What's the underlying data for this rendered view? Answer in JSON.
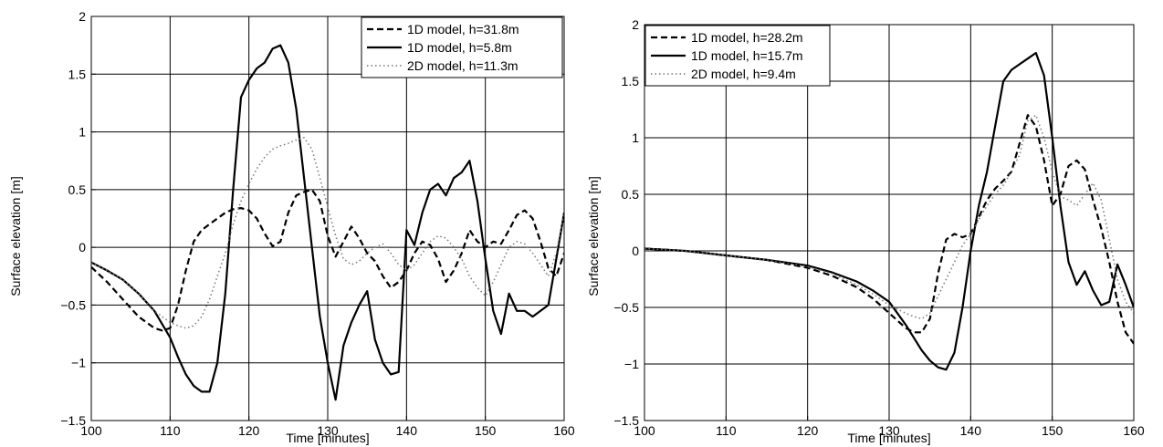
{
  "chart_data": [
    {
      "type": "line",
      "xlabel": "Time [minutes]",
      "ylabel": "Surface elevation [m]",
      "xlim": [
        100,
        160
      ],
      "ylim": [
        -1.5,
        2
      ],
      "xticks": [
        100,
        110,
        120,
        130,
        140,
        150,
        160
      ],
      "yticks": [
        -1.5,
        -1,
        -0.5,
        0,
        0.5,
        1,
        1.5,
        2
      ],
      "ytick_labels": [
        "−1.5",
        "−1",
        "−0.5",
        "0",
        "0.5",
        "1",
        "1.5",
        "2"
      ],
      "grid": true,
      "legend_position": "top-right",
      "series": [
        {
          "name": "1D model, h=31.8m",
          "style": "dashed",
          "x": [
            100,
            102,
            104,
            106,
            108,
            109,
            110,
            111,
            112,
            113,
            114,
            115,
            116,
            117,
            118,
            119,
            120,
            121,
            122,
            123,
            124,
            125,
            126,
            127,
            128,
            129,
            130,
            131,
            132,
            133,
            134,
            135,
            136,
            137,
            138,
            139,
            140,
            141,
            142,
            143,
            144,
            145,
            146,
            147,
            148,
            149,
            150,
            151,
            152,
            153,
            154,
            155,
            156,
            157,
            158,
            159,
            160
          ],
          "y": [
            -0.17,
            -0.3,
            -0.45,
            -0.6,
            -0.7,
            -0.72,
            -0.7,
            -0.5,
            -0.2,
            0.05,
            0.15,
            0.2,
            0.25,
            0.3,
            0.33,
            0.34,
            0.32,
            0.25,
            0.12,
            0.01,
            0.05,
            0.3,
            0.45,
            0.48,
            0.5,
            0.4,
            0.1,
            -0.08,
            0.05,
            0.18,
            0.08,
            -0.05,
            -0.12,
            -0.25,
            -0.35,
            -0.3,
            -0.2,
            -0.05,
            0.05,
            0.02,
            -0.1,
            -0.3,
            -0.2,
            -0.05,
            0.15,
            0.05,
            0.0,
            0.05,
            0.03,
            0.15,
            0.28,
            0.32,
            0.25,
            0.05,
            -0.18,
            -0.25,
            -0.05
          ]
        },
        {
          "name": "1D model, h=5.8m",
          "style": "solid",
          "x": [
            100,
            102,
            104,
            106,
            108,
            110,
            111,
            112,
            113,
            114,
            115,
            116,
            117,
            118,
            119,
            120,
            121,
            122,
            123,
            124,
            125,
            126,
            127,
            128,
            129,
            130,
            131,
            132,
            133,
            134,
            135,
            136,
            137,
            138,
            139,
            140,
            141,
            142,
            143,
            144,
            145,
            146,
            147,
            148,
            149,
            150,
            151,
            152,
            153,
            154,
            155,
            156,
            157,
            158,
            159,
            160
          ],
          "y": [
            -0.13,
            -0.2,
            -0.28,
            -0.4,
            -0.55,
            -0.78,
            -0.95,
            -1.1,
            -1.2,
            -1.25,
            -1.25,
            -1.0,
            -0.4,
            0.5,
            1.3,
            1.45,
            1.55,
            1.6,
            1.72,
            1.75,
            1.6,
            1.2,
            0.6,
            0.0,
            -0.6,
            -1.0,
            -1.32,
            -0.85,
            -0.65,
            -0.5,
            -0.38,
            -0.8,
            -1.0,
            -1.1,
            -1.08,
            0.15,
            0.02,
            0.3,
            0.5,
            0.55,
            0.45,
            0.6,
            0.65,
            0.75,
            0.4,
            -0.1,
            -0.55,
            -0.75,
            -0.4,
            -0.55,
            -0.55,
            -0.6,
            -0.55,
            -0.5,
            -0.1,
            0.3
          ]
        },
        {
          "name": "2D model, h=11.3m",
          "style": "dotted",
          "x": [
            100,
            102,
            104,
            106,
            108,
            110,
            111,
            112,
            113,
            114,
            115,
            116,
            117,
            118,
            119,
            120,
            121,
            122,
            123,
            124,
            125,
            126,
            127,
            128,
            129,
            130,
            131,
            132,
            133,
            134,
            135,
            136,
            137,
            138,
            139,
            140,
            141,
            142,
            143,
            144,
            145,
            146,
            147,
            148,
            149,
            150,
            151,
            152,
            153,
            154,
            155,
            156,
            157,
            158,
            159,
            160
          ],
          "y": [
            -0.13,
            -0.2,
            -0.28,
            -0.4,
            -0.55,
            -0.65,
            -0.68,
            -0.7,
            -0.68,
            -0.6,
            -0.45,
            -0.25,
            -0.05,
            0.2,
            0.4,
            0.55,
            0.68,
            0.78,
            0.85,
            0.88,
            0.9,
            0.93,
            0.95,
            0.85,
            0.6,
            0.35,
            0.1,
            -0.1,
            -0.15,
            -0.12,
            -0.05,
            0.0,
            0.03,
            -0.05,
            -0.15,
            -0.2,
            -0.15,
            -0.05,
            0.05,
            0.1,
            0.08,
            0.0,
            -0.1,
            -0.25,
            -0.35,
            -0.42,
            -0.3,
            -0.15,
            0.0,
            0.05,
            0.03,
            -0.05,
            -0.15,
            -0.25,
            -0.05,
            0.3
          ]
        }
      ]
    },
    {
      "type": "line",
      "xlabel": "Time [minutes]",
      "ylabel": "Surface elevation [m]",
      "xlim": [
        100,
        160
      ],
      "ylim": [
        -1.5,
        2
      ],
      "xticks": [
        100,
        110,
        120,
        130,
        140,
        150,
        160
      ],
      "yticks": [
        -1.5,
        -1,
        -0.5,
        0,
        0.5,
        1,
        1.5,
        2
      ],
      "ytick_labels": [
        "−1.5",
        "−1",
        "−0.5",
        "0",
        "0.5",
        "1",
        "1.5",
        "2"
      ],
      "grid": true,
      "legend_position": "top-left",
      "series": [
        {
          "name": "1D model, h=28.2m",
          "style": "dashed",
          "x": [
            100,
            105,
            110,
            115,
            120,
            123,
            126,
            128,
            130,
            132,
            133,
            134,
            135,
            136,
            137,
            138,
            139,
            140,
            141,
            142,
            143,
            144,
            145,
            146,
            147,
            148,
            149,
            150,
            151,
            152,
            153,
            154,
            155,
            156,
            157,
            158,
            159,
            160
          ],
          "y": [
            0.02,
            0.0,
            -0.04,
            -0.08,
            -0.15,
            -0.22,
            -0.32,
            -0.42,
            -0.55,
            -0.68,
            -0.72,
            -0.72,
            -0.6,
            -0.2,
            0.1,
            0.15,
            0.12,
            0.15,
            0.3,
            0.45,
            0.55,
            0.62,
            0.7,
            0.95,
            1.2,
            1.1,
            0.8,
            0.4,
            0.5,
            0.75,
            0.8,
            0.72,
            0.45,
            0.2,
            -0.1,
            -0.45,
            -0.72,
            -0.82
          ]
        },
        {
          "name": "1D model, h=15.7m",
          "style": "solid",
          "x": [
            100,
            105,
            110,
            115,
            120,
            123,
            126,
            128,
            130,
            132,
            134,
            135,
            136,
            137,
            138,
            139,
            140,
            141,
            142,
            143,
            144,
            145,
            146,
            147,
            148,
            149,
            150,
            151,
            152,
            153,
            154,
            155,
            156,
            157,
            158,
            159,
            160
          ],
          "y": [
            0.02,
            0.0,
            -0.04,
            -0.08,
            -0.13,
            -0.19,
            -0.27,
            -0.35,
            -0.45,
            -0.65,
            -0.88,
            -0.97,
            -1.03,
            -1.05,
            -0.9,
            -0.5,
            0.0,
            0.4,
            0.7,
            1.1,
            1.5,
            1.6,
            1.65,
            1.7,
            1.75,
            1.55,
            1.0,
            0.4,
            -0.1,
            -0.3,
            -0.18,
            -0.35,
            -0.48,
            -0.45,
            -0.12,
            -0.3,
            -0.5
          ]
        },
        {
          "name": "2D model, h=9.4m",
          "style": "dotted",
          "x": [
            100,
            105,
            110,
            115,
            120,
            123,
            126,
            128,
            130,
            132,
            133,
            134,
            135,
            136,
            137,
            138,
            139,
            140,
            141,
            142,
            143,
            144,
            145,
            146,
            147,
            148,
            149,
            150,
            151,
            152,
            153,
            154,
            155,
            156,
            157,
            158,
            159,
            160
          ],
          "y": [
            0.02,
            0.0,
            -0.04,
            -0.08,
            -0.14,
            -0.2,
            -0.3,
            -0.38,
            -0.48,
            -0.55,
            -0.58,
            -0.6,
            -0.55,
            -0.4,
            -0.25,
            -0.1,
            0.05,
            0.15,
            0.28,
            0.4,
            0.5,
            0.58,
            0.7,
            0.85,
            1.15,
            1.2,
            1.0,
            0.7,
            0.48,
            0.45,
            0.4,
            0.5,
            0.6,
            0.45,
            0.1,
            -0.25,
            -0.45,
            -0.55
          ]
        }
      ]
    }
  ]
}
